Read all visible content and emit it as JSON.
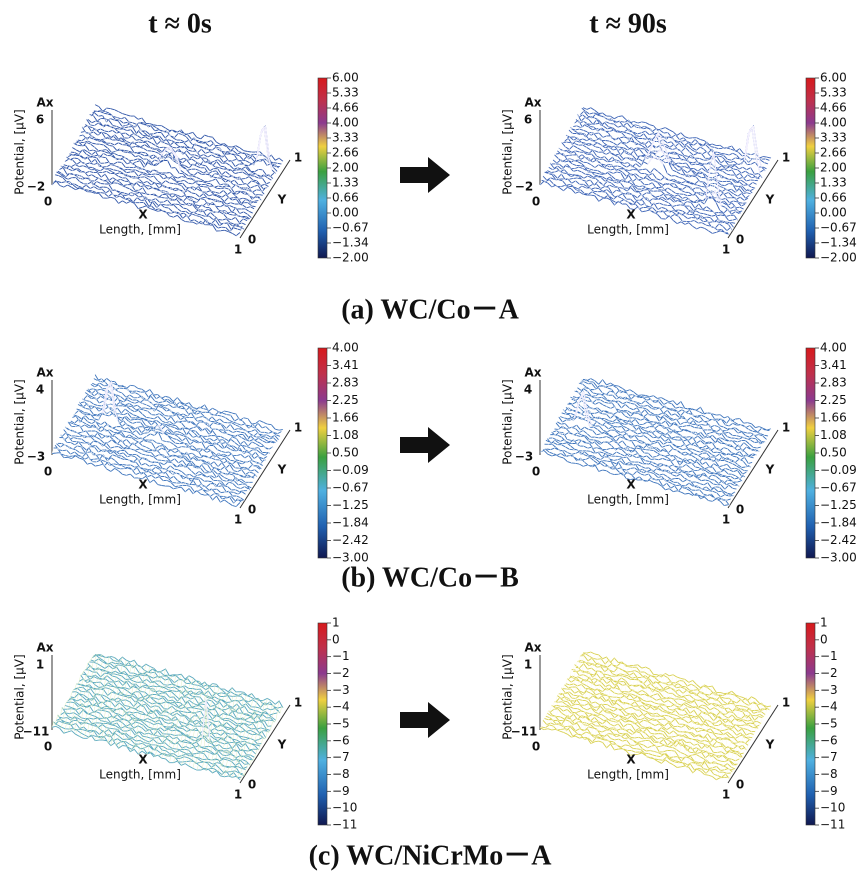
{
  "headers": {
    "left": "t ≈ 0s",
    "right": "t ≈ 90s"
  },
  "axes": {
    "z_name": "Ax",
    "z_label": "Potential, [μV]",
    "x_name": "X",
    "x_label": "Length, [mm]",
    "y_name": "Y",
    "origin": "0",
    "end": "1"
  },
  "rows": [
    {
      "caption": "(a) WC/Co－A",
      "z_max": "6",
      "z_min": "−2",
      "colorbar": [
        "6.00",
        "5.33",
        "4.66",
        "4.00",
        "3.33",
        "2.66",
        "2.00",
        "1.33",
        "0.66",
        "0.00",
        "−0.67",
        "−1.34",
        "−2.00"
      ]
    },
    {
      "caption": "(b) WC/Co－B",
      "z_max": "4",
      "z_min": "−3",
      "colorbar": [
        "4.00",
        "3.41",
        "2.83",
        "2.25",
        "1.66",
        "1.08",
        "0.50",
        "−0.09",
        "−0.67",
        "−1.25",
        "−1.84",
        "−2.42",
        "−3.00"
      ]
    },
    {
      "caption": "(c) WC/NiCrMo－A",
      "z_max": "1",
      "z_min": "−11",
      "colorbar": [
        "1",
        "0",
        "−1",
        "−2",
        "−3",
        "−4",
        "−5",
        "−6",
        "−7",
        "−8",
        "−9",
        "−10",
        "−11"
      ]
    }
  ]
}
